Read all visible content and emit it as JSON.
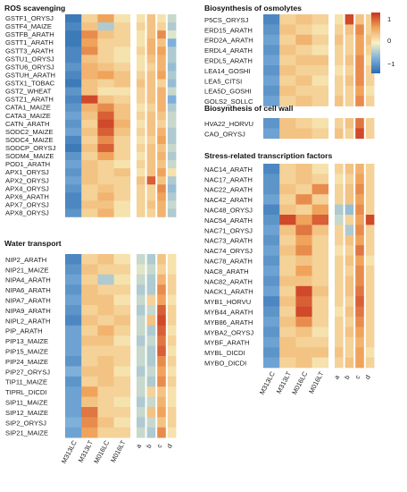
{
  "legend": {
    "ticks": [
      "1",
      "0",
      "−1"
    ],
    "colors": [
      "#2b6cb0",
      "#7fb0da",
      "#f7f2c2",
      "#f0a35a",
      "#c8321e"
    ]
  },
  "cols": {
    "main": [
      "M313LC",
      "M313LT",
      "M016LC",
      "M016LT"
    ],
    "side": [
      "a",
      "b",
      "c",
      "d"
    ]
  },
  "panels": [
    {
      "title": "ROS scavenging",
      "genes": [
        {
          "name": "GSTF1_ORYSJ",
          "main": [
            -0.9,
            0.2,
            0.5,
            0.1
          ],
          "side": [
            0.1,
            0.3,
            0.1,
            -0.2
          ]
        },
        {
          "name": "GSTF4_MAIZE",
          "main": [
            -0.8,
            0.3,
            -0.3,
            0.2
          ],
          "side": [
            0.2,
            0.3,
            0.2,
            -0.3
          ]
        },
        {
          "name": "GSTFB_ARATH",
          "main": [
            -0.9,
            0.6,
            0.3,
            0.2
          ],
          "side": [
            0.1,
            0.3,
            0.6,
            -0.1
          ]
        },
        {
          "name": "GSTT1_ARATH",
          "main": [
            -0.9,
            0.5,
            0.2,
            0.2
          ],
          "side": [
            0.1,
            0.4,
            0.3,
            -0.5
          ]
        },
        {
          "name": "GSTT3_ARATH",
          "main": [
            -0.8,
            0.6,
            0.2,
            0.1
          ],
          "side": [
            0.2,
            0.4,
            0.5,
            -0.3
          ]
        },
        {
          "name": "GSTU1_ORYSJ",
          "main": [
            -0.8,
            0.3,
            0.2,
            0.1
          ],
          "side": [
            0.1,
            0.3,
            0.4,
            -0.3
          ]
        },
        {
          "name": "GSTU6_ORYSJ",
          "main": [
            -0.7,
            0.4,
            0.3,
            0.2
          ],
          "side": [
            0.1,
            0.2,
            0.4,
            -0.4
          ]
        },
        {
          "name": "GSTUH_ARATH",
          "main": [
            -0.8,
            0.4,
            0.5,
            0.3
          ],
          "side": [
            0.2,
            0.3,
            0.5,
            -0.3
          ]
        },
        {
          "name": "GSTX1_TOBAC",
          "main": [
            -0.9,
            0.3,
            0.2,
            0.3
          ],
          "side": [
            0.3,
            0.3,
            0.2,
            -0.4
          ]
        },
        {
          "name": "GSTZ_WHEAT",
          "main": [
            -0.7,
            0.3,
            0.1,
            0.1
          ],
          "side": [
            0.2,
            0.3,
            0.4,
            -0.2
          ]
        },
        {
          "name": "GSTZ1_ARATH",
          "main": [
            -0.8,
            0.9,
            0.3,
            0.2
          ],
          "side": [
            0.2,
            0.3,
            0.4,
            -0.5
          ]
        },
        {
          "name": "CATA1_MAIZE",
          "main": [
            -0.7,
            0.4,
            0.6,
            0.3
          ],
          "side": [
            0.1,
            0.2,
            0.4,
            -0.3
          ]
        },
        {
          "name": "CATA3_MAIZE",
          "main": [
            -0.6,
            0.3,
            0.8,
            0.3
          ],
          "side": [
            0.2,
            0.3,
            0.3,
            -0.2
          ]
        },
        {
          "name": "CATN_ARATH",
          "main": [
            -0.7,
            0.2,
            0.9,
            0.4
          ],
          "side": [
            0.1,
            0.3,
            0.2,
            -0.2
          ]
        },
        {
          "name": "SODC2_MAIZE",
          "main": [
            -0.6,
            0.3,
            0.8,
            0.3
          ],
          "side": [
            0.2,
            0.3,
            0.4,
            -0.3
          ]
        },
        {
          "name": "SODC4_MAIZE",
          "main": [
            -0.8,
            0.2,
            0.6,
            0.2
          ],
          "side": [
            0.1,
            0.2,
            0.5,
            -0.3
          ]
        },
        {
          "name": "SODCP_ORYSJ",
          "main": [
            -0.9,
            0.3,
            0.8,
            0.2
          ],
          "side": [
            0.2,
            0.3,
            0.3,
            -0.2
          ]
        },
        {
          "name": "SODM4_MAIZE",
          "main": [
            -0.7,
            0.2,
            0.5,
            0.2
          ],
          "side": [
            0.1,
            0.3,
            0.4,
            -0.3
          ]
        },
        {
          "name": "POD1_ARATH",
          "main": [
            -0.6,
            0.3,
            0.2,
            0.1
          ],
          "side": [
            0.2,
            0.3,
            0.3,
            -0.2
          ]
        },
        {
          "name": "APX1_ORYSJ",
          "main": [
            -0.7,
            0.3,
            0.2,
            0.3
          ],
          "side": [
            0.1,
            0.3,
            0.5,
            0.1
          ]
        },
        {
          "name": "APX2_ORYSJ",
          "main": [
            -0.6,
            0.3,
            0.2,
            0.2
          ],
          "side": [
            0.3,
            0.8,
            0.3,
            -0.3
          ]
        },
        {
          "name": "APX4_ORYSJ",
          "main": [
            -0.7,
            0.2,
            0.3,
            0.2
          ],
          "side": [
            0.2,
            0.2,
            0.6,
            -0.4
          ]
        },
        {
          "name": "APX6_ARATH",
          "main": [
            -0.8,
            0.2,
            0.4,
            0.2
          ],
          "side": [
            0.2,
            0.2,
            0.5,
            -0.3
          ]
        },
        {
          "name": "APX7_ORYSJ",
          "main": [
            -0.8,
            0.3,
            0.3,
            0.1
          ],
          "side": [
            0.2,
            0.3,
            0.4,
            -0.2
          ]
        },
        {
          "name": "APX8_ORYSJ",
          "main": [
            -0.7,
            0.2,
            0.4,
            0.1
          ],
          "side": [
            0.2,
            0.2,
            0.4,
            -0.3
          ]
        }
      ]
    },
    {
      "title": "Water transport",
      "genes": [
        {
          "name": "NIP2_ARATH",
          "main": [
            -0.8,
            0.2,
            0.3,
            0.1
          ],
          "side": [
            -0.2,
            -0.3,
            0.3,
            0.1
          ]
        },
        {
          "name": "NIP21_MAIZE",
          "main": [
            -0.7,
            0.3,
            0.2,
            0.2
          ],
          "side": [
            -0.1,
            -0.2,
            0.2,
            0.1
          ]
        },
        {
          "name": "NIPA4_ARATH",
          "main": [
            -0.6,
            0.2,
            -0.3,
            0.1
          ],
          "side": [
            -0.2,
            -0.3,
            0.4,
            0.2
          ]
        },
        {
          "name": "NIPA6_ARATH",
          "main": [
            -0.7,
            0.3,
            0.2,
            0.2
          ],
          "side": [
            -0.3,
            -0.3,
            0.6,
            0.2
          ]
        },
        {
          "name": "NIPA7_ARATH",
          "main": [
            -0.6,
            0.3,
            0.3,
            0.1
          ],
          "side": [
            -0.2,
            0.2,
            0.5,
            0.1
          ]
        },
        {
          "name": "NIPA9_ARATH",
          "main": [
            -0.7,
            0.2,
            0.3,
            0.2
          ],
          "side": [
            -0.3,
            -0.2,
            0.8,
            0.2
          ]
        },
        {
          "name": "NIPL2_ARATH",
          "main": [
            -0.8,
            0.3,
            0.2,
            0.3
          ],
          "side": [
            -0.2,
            0.3,
            0.9,
            0.2
          ]
        },
        {
          "name": "PIP_ARATH",
          "main": [
            -0.6,
            0.2,
            0.4,
            0.2
          ],
          "side": [
            -0.2,
            -0.3,
            0.8,
            0.1
          ]
        },
        {
          "name": "PIP13_MAIZE",
          "main": [
            -0.6,
            0.3,
            0.3,
            0.1
          ],
          "side": [
            -0.3,
            -0.2,
            0.7,
            0.2
          ]
        },
        {
          "name": "PIP15_MAIZE",
          "main": [
            -0.6,
            0.2,
            0.2,
            0.2
          ],
          "side": [
            -0.2,
            -0.3,
            0.8,
            0.1
          ]
        },
        {
          "name": "PIP24_MAIZE",
          "main": [
            -0.7,
            0.2,
            0.3,
            0.2
          ],
          "side": [
            -0.2,
            -0.3,
            0.6,
            0.2
          ]
        },
        {
          "name": "PIP27_ORYSJ",
          "main": [
            -0.5,
            0.3,
            0.3,
            0.1
          ],
          "side": [
            -0.3,
            -0.2,
            0.5,
            0.1
          ]
        },
        {
          "name": "TIP11_MAIZE",
          "main": [
            -0.7,
            0.2,
            0.3,
            0.2
          ],
          "side": [
            -0.2,
            -0.3,
            0.6,
            0.2
          ]
        },
        {
          "name": "TIPRL_DICDI",
          "main": [
            -0.6,
            0.5,
            0.2,
            0.2
          ],
          "side": [
            -0.2,
            0.2,
            0.3,
            0.1
          ]
        },
        {
          "name": "SIP11_MAIZE",
          "main": [
            -0.6,
            0.3,
            0.2,
            0.1
          ],
          "side": [
            -0.3,
            -0.2,
            0.4,
            0.1
          ]
        },
        {
          "name": "SIP12_MAIZE",
          "main": [
            -0.6,
            0.7,
            0.2,
            0.2
          ],
          "side": [
            -0.2,
            0.3,
            0.5,
            0.2
          ]
        },
        {
          "name": "SIP2_ORYSJ",
          "main": [
            -0.5,
            0.6,
            0.3,
            0.1
          ],
          "side": [
            -0.3,
            -0.2,
            0.3,
            0.2
          ]
        },
        {
          "name": "SIP21_MAIZE",
          "main": [
            -0.6,
            0.5,
            0.2,
            0.2
          ],
          "side": [
            -0.2,
            -0.3,
            0.6,
            0.1
          ]
        }
      ]
    },
    {
      "title": "Biosynthesis of osmolytes",
      "genes": [
        {
          "name": "P5CS_ORYSJ",
          "main": [
            -0.8,
            0.2,
            0.3,
            0.2
          ],
          "side": [
            0.1,
            0.9,
            0.3,
            0.2
          ]
        },
        {
          "name": "ERD15_ARATH",
          "main": [
            -0.7,
            0.3,
            0.2,
            0.1
          ],
          "side": [
            0.2,
            0.3,
            0.6,
            0.2
          ]
        },
        {
          "name": "ERD2A_ARATH",
          "main": [
            -0.6,
            0.2,
            0.4,
            0.2
          ],
          "side": [
            0.3,
            0.2,
            0.5,
            0.3
          ]
        },
        {
          "name": "ERDL4_ARATH",
          "main": [
            -0.7,
            0.3,
            0.2,
            0.1
          ],
          "side": [
            0.2,
            0.2,
            0.5,
            0.2
          ]
        },
        {
          "name": "ERDL5_ARATH",
          "main": [
            -0.6,
            0.2,
            0.3,
            0.3
          ],
          "side": [
            0.2,
            0.3,
            0.6,
            0.1
          ]
        },
        {
          "name": "LEA14_GOSHI",
          "main": [
            -0.7,
            0.3,
            0.2,
            0.2
          ],
          "side": [
            0.1,
            0.2,
            0.6,
            0.2
          ]
        },
        {
          "name": "LEA5_CITSI",
          "main": [
            -0.6,
            0.2,
            0.3,
            0.1
          ],
          "side": [
            0.2,
            0.3,
            0.6,
            0.2
          ]
        },
        {
          "name": "LEA5D_GOSHI",
          "main": [
            -0.7,
            0.3,
            0.2,
            0.2
          ],
          "side": [
            0.2,
            0.2,
            0.5,
            0.1
          ]
        },
        {
          "name": "GOLS2_SOLLC",
          "main": [
            -0.6,
            0.2,
            0.3,
            0.2
          ],
          "side": [
            0.3,
            0.2,
            0.6,
            0.2
          ]
        }
      ]
    },
    {
      "title": "Biosynthesis of cell wall",
      "genes": [
        {
          "name": "HVA22_HORVU",
          "main": [
            -0.7,
            0.3,
            0.2,
            0.1
          ],
          "side": [
            0.2,
            0.3,
            0.7,
            0.2
          ]
        },
        {
          "name": "CAO_ORYSJ",
          "main": [
            -0.6,
            0.3,
            0.3,
            0.2
          ],
          "side": [
            0.3,
            0.2,
            0.9,
            0.2
          ]
        }
      ]
    },
    {
      "title": "Stress-related transcription factors",
      "genes": [
        {
          "name": "NAC14_ARATH",
          "main": [
            -0.8,
            0.2,
            0.3,
            0.1
          ],
          "side": [
            0.2,
            0.3,
            0.4,
            0.2
          ]
        },
        {
          "name": "NAC17_ARATH",
          "main": [
            -0.7,
            0.2,
            0.3,
            0.2
          ],
          "side": [
            0.1,
            0.2,
            0.5,
            0.2
          ]
        },
        {
          "name": "NAC22_ARATH",
          "main": [
            -0.7,
            0.3,
            0.2,
            0.6
          ],
          "side": [
            0.2,
            0.3,
            0.6,
            0.2
          ]
        },
        {
          "name": "NAC42_ARATH",
          "main": [
            -0.6,
            0.2,
            0.6,
            0.2
          ],
          "side": [
            0.2,
            0.3,
            0.5,
            0.2
          ]
        },
        {
          "name": "NAC48_ORYSJ",
          "main": [
            -0.8,
            0.3,
            0.2,
            0.5
          ],
          "side": [
            -0.3,
            -0.4,
            0.6,
            0.2
          ]
        },
        {
          "name": "NAC54_ARATH",
          "main": [
            -0.7,
            0.9,
            0.5,
            0.8
          ],
          "side": [
            -0.2,
            0.2,
            0.5,
            0.9
          ]
        },
        {
          "name": "NAC71_ORYSJ",
          "main": [
            -0.6,
            0.3,
            0.7,
            0.3
          ],
          "side": [
            0.2,
            -0.3,
            0.6,
            0.2
          ]
        },
        {
          "name": "NAC73_ARATH",
          "main": [
            -0.7,
            0.2,
            0.5,
            0.2
          ],
          "side": [
            0.2,
            0.3,
            0.5,
            0.2
          ]
        },
        {
          "name": "NAC74_ORYSJ",
          "main": [
            -0.6,
            0.3,
            0.6,
            0.2
          ],
          "side": [
            0.1,
            0.2,
            0.7,
            0.2
          ]
        },
        {
          "name": "NAC78_ARATH",
          "main": [
            -0.7,
            0.2,
            0.3,
            0.2
          ],
          "side": [
            0.2,
            0.3,
            0.5,
            0.1
          ]
        },
        {
          "name": "NAC8_ARATH",
          "main": [
            -0.6,
            0.2,
            0.5,
            0.2
          ],
          "side": [
            0.2,
            0.2,
            0.6,
            0.2
          ]
        },
        {
          "name": "NAC82_ARATH",
          "main": [
            -0.7,
            0.3,
            0.3,
            0.2
          ],
          "side": [
            0.2,
            0.3,
            0.6,
            0.2
          ]
        },
        {
          "name": "NACK1_ARATH",
          "main": [
            -0.6,
            0.2,
            0.9,
            0.3
          ],
          "side": [
            0.2,
            0.3,
            0.7,
            0.2
          ]
        },
        {
          "name": "MYB1_HORVU",
          "main": [
            -0.8,
            0.3,
            0.8,
            0.2
          ],
          "side": [
            0.2,
            0.2,
            0.8,
            0.2
          ]
        },
        {
          "name": "MYB44_ARATH",
          "main": [
            -0.7,
            0.2,
            0.9,
            0.2
          ],
          "side": [
            0.1,
            0.3,
            0.7,
            0.2
          ]
        },
        {
          "name": "MYB86_ARATH",
          "main": [
            -0.6,
            0.3,
            0.6,
            0.2
          ],
          "side": [
            0.2,
            0.2,
            0.6,
            0.2
          ]
        },
        {
          "name": "MYBA2_ORYSJ",
          "main": [
            -0.7,
            0.2,
            0.3,
            0.1
          ],
          "side": [
            0.2,
            0.3,
            0.5,
            0.2
          ]
        },
        {
          "name": "MYBF_ARATH",
          "main": [
            -0.6,
            0.3,
            0.2,
            0.2
          ],
          "side": [
            0.2,
            0.2,
            0.4,
            0.2
          ]
        },
        {
          "name": "MYBL_DICDI",
          "main": [
            -0.7,
            0.3,
            0.3,
            0.3
          ],
          "side": [
            0.3,
            0.2,
            0.5,
            0.1
          ]
        },
        {
          "name": "MYBO_DICDI",
          "main": [
            -0.6,
            0.2,
            0.3,
            0.1
          ],
          "side": [
            0.2,
            0.3,
            0.5,
            0.2
          ]
        }
      ]
    }
  ]
}
